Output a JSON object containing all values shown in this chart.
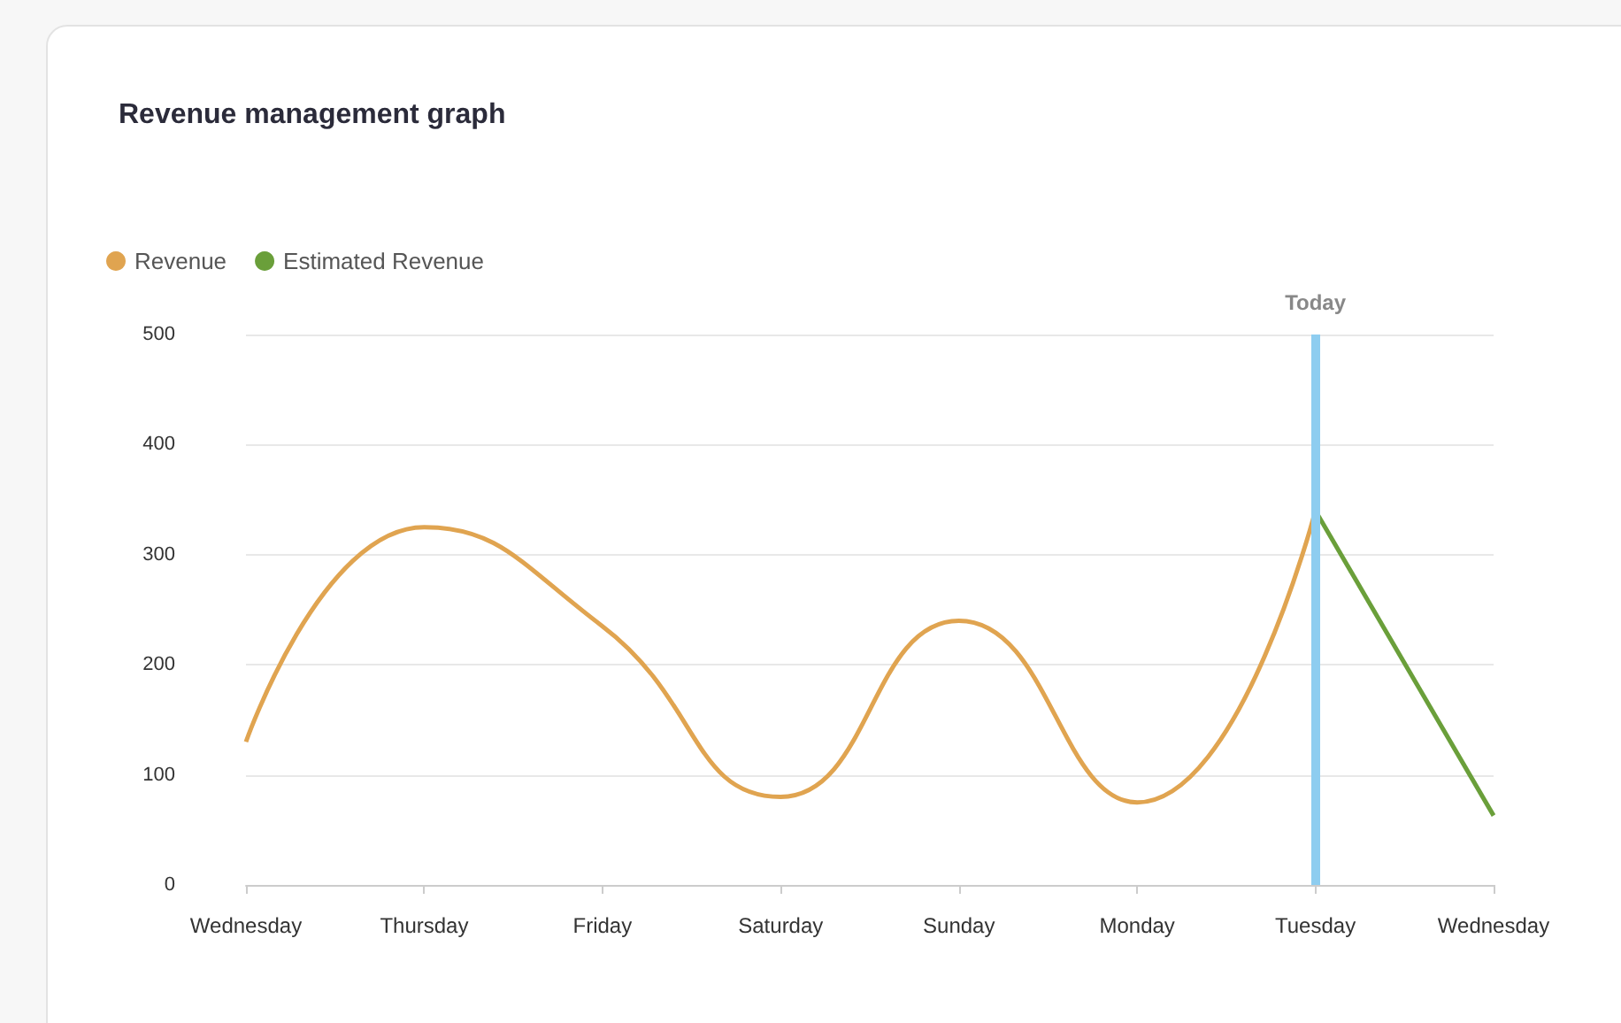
{
  "chart_data": {
    "type": "line",
    "title": "Revenue management graph",
    "categories": [
      "Wednesday",
      "Thursday",
      "Friday",
      "Saturday",
      "Sunday",
      "Monday",
      "Tuesday",
      "Wednesday"
    ],
    "series": [
      {
        "name": "Revenue",
        "color": "#e0a450",
        "values": [
          130,
          325,
          235,
          80,
          240,
          75,
          340,
          null
        ]
      },
      {
        "name": "Estimated Revenue",
        "color": "#6a9f3a",
        "values": [
          null,
          null,
          null,
          null,
          null,
          null,
          340,
          63
        ]
      }
    ],
    "ylim": [
      0,
      500
    ],
    "yticks": [
      0,
      100,
      200,
      300,
      400,
      500
    ],
    "grid": "y",
    "legend": "top left",
    "marker": "none",
    "line_style": "solid",
    "ref_lines": [
      {
        "axis": "x",
        "value": "Tuesday",
        "label": "Today",
        "color": "#8ecdf0"
      }
    ]
  }
}
